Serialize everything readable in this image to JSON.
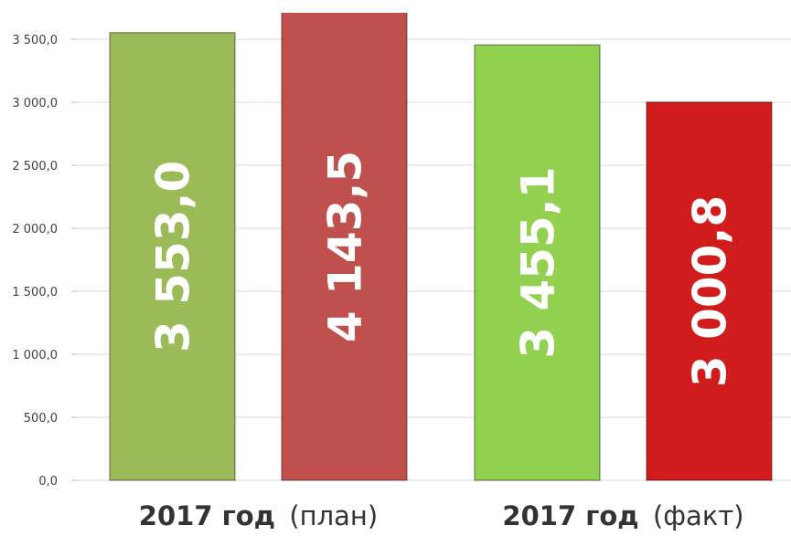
{
  "chart_data": {
    "type": "bar",
    "groups": [
      {
        "label": "2017 год",
        "note": "(план)",
        "values": [
          3553.0,
          4143.5
        ],
        "value_labels": [
          "3 553,0",
          "4 143,5"
        ],
        "colors": [
          "#9bbb59",
          "#c0504d"
        ]
      },
      {
        "label": "2017 год",
        "note": "(факт)",
        "values": [
          3455.1,
          3000.8
        ],
        "value_labels": [
          "3 455,1",
          "3 000,8"
        ],
        "colors": [
          "#92d050",
          "#d01c1c"
        ]
      }
    ],
    "ylim": [
      0,
      3710
    ],
    "yticks": [
      {
        "value": 0,
        "label": "0,0"
      },
      {
        "value": 500,
        "label": "500,0"
      },
      {
        "value": 1000,
        "label": "1 000,0"
      },
      {
        "value": 1500,
        "label": "1 500,0"
      },
      {
        "value": 2000,
        "label": "2 000,0"
      },
      {
        "value": 2500,
        "label": "2 500,0"
      },
      {
        "value": 3000,
        "label": "3 000,0"
      },
      {
        "value": 3500,
        "label": "3 500,0"
      }
    ],
    "grid": true
  }
}
